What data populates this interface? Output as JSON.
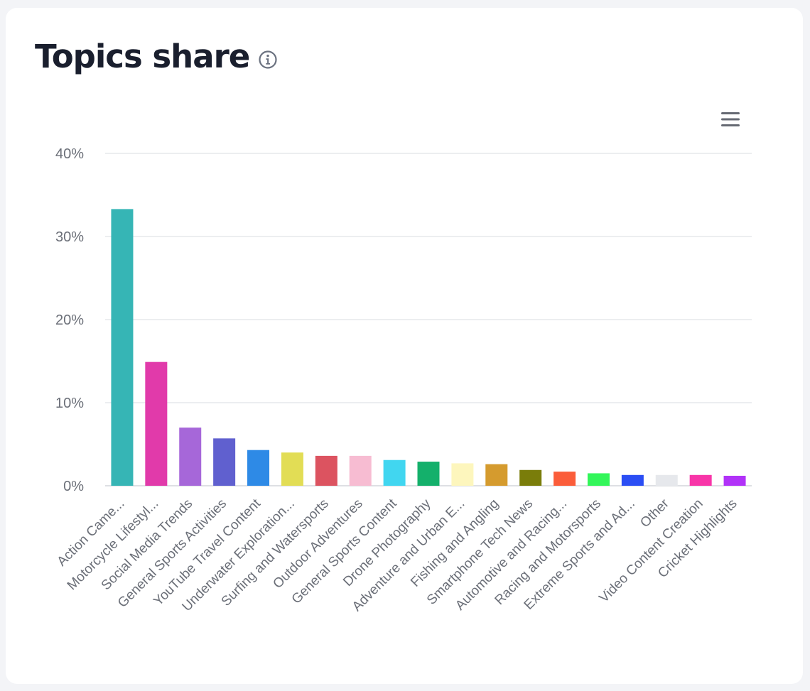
{
  "header": {
    "title": "Topics share",
    "info_icon": "info-icon"
  },
  "toolbar": {
    "menu_icon": "hamburger-menu-icon"
  },
  "chart_data": {
    "type": "bar",
    "title": "Topics share",
    "xlabel": "",
    "ylabel": "",
    "ylim": [
      0,
      40
    ],
    "y_ticks": [
      "0%",
      "10%",
      "20%",
      "30%",
      "40%"
    ],
    "grid": true,
    "categories": [
      "Action Came...",
      "Motorcycle Lifestyl...",
      "Social Media Trends",
      "General Sports Activities",
      "YouTube Travel Content",
      "Underwater Exploration...",
      "Surfing and Watersports",
      "Outdoor Adventures",
      "General Sports Content",
      "Drone Photography",
      "Adventure and Urban E...",
      "Fishing and Angling",
      "Smartphone Tech News",
      "Automotive and Racing...",
      "Racing and Motorsports",
      "Extreme Sports and Ad...",
      "Other",
      "Video Content Creation",
      "Cricket Highlights"
    ],
    "values": [
      33.3,
      14.9,
      7.0,
      5.7,
      4.3,
      4.0,
      3.6,
      3.6,
      3.1,
      2.9,
      2.7,
      2.6,
      1.9,
      1.7,
      1.5,
      1.3,
      1.3,
      1.3,
      1.2
    ],
    "colors": [
      "#36b5b5",
      "#e13aaa",
      "#a667d9",
      "#6060cf",
      "#2e8ae6",
      "#e2dd55",
      "#dc5360",
      "#f7bcd2",
      "#41d6f0",
      "#14b06b",
      "#fdf6bd",
      "#d59b2e",
      "#7a7d0a",
      "#fb5d3a",
      "#33f65a",
      "#2b4ef4",
      "#e6e8ec",
      "#f835a8",
      "#b132f8"
    ]
  }
}
